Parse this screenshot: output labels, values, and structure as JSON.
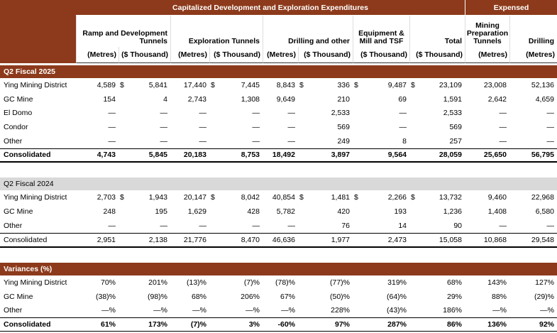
{
  "header": {
    "capitalized": "Capitalized Development and Exploration Expenditures",
    "expensed": "Expensed",
    "groups": [
      "Ramp and Development Tunnels",
      "Exploration Tunnels",
      "Drilling and other",
      "Equipment & Mill and TSF",
      "Total",
      "Mining Preparation Tunnels",
      "Drilling"
    ],
    "units": [
      "(Metres)",
      "($ Thousand)",
      "(Metres)",
      "($ Thousand)",
      "(Metres)",
      "($ Thousand)",
      "($ Thousand)",
      "($ Thousand)",
      "(Metres)",
      "(Metres)"
    ]
  },
  "sections": [
    {
      "title": "Q2 Fiscal 2025",
      "rows": [
        {
          "label": "Ying Mining District",
          "cells": [
            "4,589",
            [
              "$",
              "5,841"
            ],
            "17,440",
            [
              "$",
              "7,445"
            ],
            "8,843",
            [
              "$",
              "336"
            ],
            [
              "$",
              "9,487"
            ],
            [
              "$",
              "23,109"
            ],
            "23,008",
            "52,136"
          ]
        },
        {
          "label": "GC Mine",
          "cells": [
            "154",
            "4",
            "2,743",
            "1,308",
            "9,649",
            "210",
            "69",
            "1,591",
            "2,642",
            "4,659"
          ]
        },
        {
          "label": "El Domo",
          "cells": [
            "—",
            "—",
            "—",
            "—",
            "—",
            "2,533",
            "—",
            "2,533",
            "—",
            "—"
          ]
        },
        {
          "label": "Condor",
          "cells": [
            "—",
            "—",
            "—",
            "—",
            "—",
            "569",
            "—",
            "569",
            "—",
            "—"
          ]
        },
        {
          "label": "Other",
          "cells": [
            "—",
            "—",
            "—",
            "—",
            "—",
            "249",
            "8",
            "257",
            "—",
            "—"
          ]
        },
        {
          "label": "Consolidated",
          "cells": [
            "4,743",
            "5,845",
            "20,183",
            "8,753",
            "18,492",
            "3,897",
            "9,564",
            "28,059",
            "25,650",
            "56,795"
          ]
        }
      ]
    },
    {
      "title": "Q2 Fiscal 2024",
      "rows": [
        {
          "label": "Ying Mining District",
          "cells": [
            "2,703",
            [
              "$",
              "1,943"
            ],
            "20,147",
            [
              "$",
              "8,042"
            ],
            "40,854",
            [
              "$",
              "1,481"
            ],
            [
              "$",
              "2,266"
            ],
            [
              "$",
              "13,732"
            ],
            "9,460",
            "22,968"
          ]
        },
        {
          "label": "GC Mine",
          "cells": [
            "248",
            "195",
            "1,629",
            "428",
            "5,782",
            "420",
            "193",
            "1,236",
            "1,408",
            "6,580"
          ]
        },
        {
          "label": "Other",
          "cells": [
            "—",
            "—",
            "—",
            "—",
            "—",
            "76",
            "14",
            "90",
            "—",
            "—"
          ]
        },
        {
          "label": "Consolidated",
          "cells": [
            "2,951",
            "2,138",
            "21,776",
            "8,470",
            "46,636",
            "1,977",
            "2,473",
            "15,058",
            "10,868",
            "29,548"
          ]
        }
      ]
    },
    {
      "title": "Variances (%)",
      "rows": [
        {
          "label": "Ying Mining District",
          "cells": [
            "70%",
            "201%",
            "(13)%",
            "(7)%",
            "(78)%",
            "(77)%",
            "319%",
            "68%",
            "143%",
            "127%"
          ]
        },
        {
          "label": "GC Mine",
          "cells": [
            "(38)%",
            "(98)%",
            "68%",
            "206%",
            "67%",
            "(50)%",
            "(64)%",
            "29%",
            "88%",
            "(29)%"
          ]
        },
        {
          "label": "Other",
          "cells": [
            "—%",
            "—%",
            "—%",
            "—%",
            "—%",
            "228%",
            "(43)%",
            "186%",
            "—%",
            "—%"
          ]
        },
        {
          "label": "Consolidated",
          "cells": [
            "61%",
            "173%",
            "(7)%",
            "3%",
            "-60%",
            "97%",
            "287%",
            "86%",
            "136%",
            "92%"
          ]
        }
      ]
    }
  ]
}
